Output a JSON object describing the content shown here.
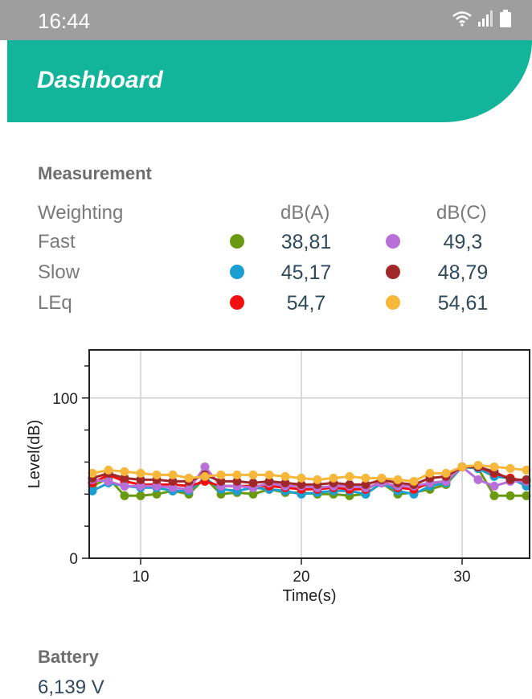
{
  "status_bar": {
    "time": "16:44"
  },
  "app_bar": {
    "title": "Dashboard"
  },
  "measurement": {
    "title": "Measurement",
    "header": {
      "label": "Weighting",
      "col_a": "dB(A)",
      "col_c": "dB(C)"
    },
    "rows": [
      {
        "label": "Fast",
        "a_value": "38,81",
        "a_color": "#6b9a12",
        "c_value": "49,3",
        "c_color": "#b86fd8"
      },
      {
        "label": "Slow",
        "a_value": "45,17",
        "a_color": "#1a9fd3",
        "c_value": "48,79",
        "c_color": "#a02828"
      },
      {
        "label": "LEq",
        "a_value": "54,7",
        "a_color": "#f01010",
        "c_value": "54,61",
        "c_color": "#f7b73a"
      }
    ]
  },
  "chart_data": {
    "type": "line",
    "xlabel": "Time(s)",
    "ylabel": "Level(dB)",
    "xlim": [
      6.8,
      34.2
    ],
    "ylim": [
      0,
      130
    ],
    "xticks": [
      10,
      20,
      30
    ],
    "yticks": [
      0,
      100
    ],
    "grid": true,
    "x": [
      7,
      8,
      9,
      10,
      11,
      12,
      13,
      14,
      15,
      16,
      17,
      18,
      19,
      20,
      21,
      22,
      23,
      24,
      25,
      26,
      27,
      28,
      29,
      30,
      31,
      32,
      33,
      34
    ],
    "series": [
      {
        "color": "#6b9a12",
        "values": [
          45,
          50,
          39,
          39,
          40,
          42,
          40,
          50,
          40,
          41,
          40,
          43,
          41,
          41,
          40,
          40,
          39,
          40,
          47,
          40,
          41,
          43,
          46,
          57,
          56,
          39,
          39,
          39
        ]
      },
      {
        "color": "#1a9fd3",
        "values": [
          42,
          47,
          45,
          44,
          44,
          42,
          42,
          50,
          43,
          42,
          44,
          43,
          42,
          40,
          41,
          42,
          42,
          40,
          47,
          42,
          40,
          45,
          47,
          57,
          56,
          51,
          50,
          45
        ]
      },
      {
        "color": "#f01010",
        "values": [
          47,
          52,
          48,
          46,
          46,
          46,
          45,
          48,
          45,
          45,
          45,
          45,
          44,
          43,
          43,
          44,
          43,
          43,
          48,
          44,
          43,
          47,
          48,
          57,
          57,
          53,
          50,
          48
        ]
      },
      {
        "color": "#b86fd8",
        "values": [
          49,
          48,
          45,
          45,
          45,
          44,
          43,
          57,
          45,
          45,
          44,
          47,
          45,
          45,
          44,
          45,
          45,
          44,
          47,
          45,
          45,
          47,
          48,
          57,
          49,
          45,
          48,
          48
        ]
      },
      {
        "color": "#a02828",
        "values": [
          50,
          53,
          50,
          49,
          49,
          48,
          48,
          52,
          48,
          48,
          47,
          48,
          47,
          46,
          46,
          47,
          46,
          46,
          49,
          47,
          46,
          50,
          51,
          57,
          57,
          54,
          49,
          49
        ]
      },
      {
        "color": "#f7b73a",
        "values": [
          53,
          55,
          54,
          53,
          52,
          52,
          50,
          51,
          52,
          52,
          52,
          52,
          51,
          50,
          49,
          50,
          51,
          50,
          50,
          49,
          48,
          53,
          53,
          57,
          58,
          57,
          56,
          55
        ]
      }
    ]
  },
  "battery": {
    "title": "Battery",
    "value": "6,139 V"
  }
}
